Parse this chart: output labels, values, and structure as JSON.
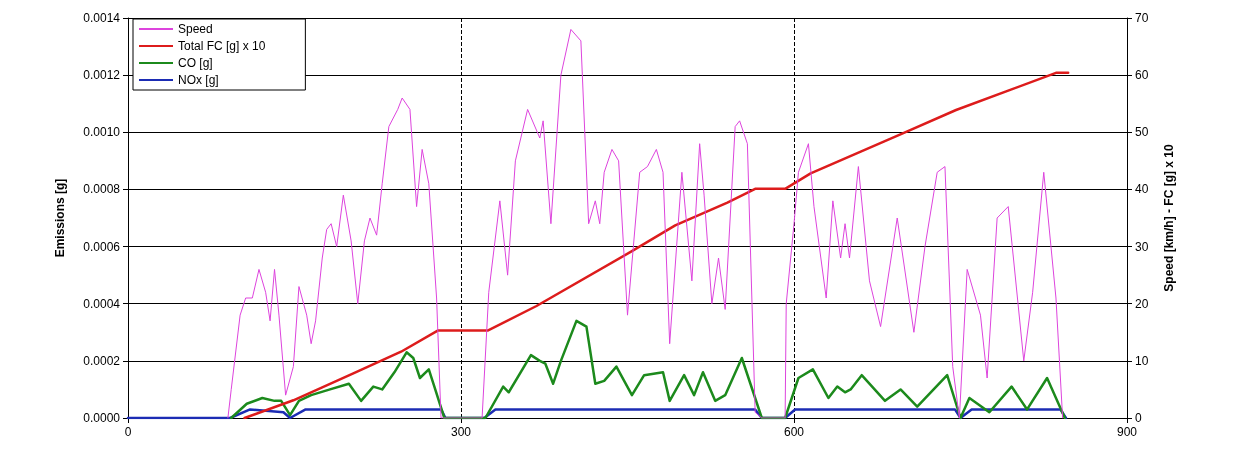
{
  "chart_data": {
    "type": "line",
    "ylabel": "Emissions [g]",
    "y2label": "Speed [km/h] - FC [g] x 10",
    "xlim": [
      0,
      900
    ],
    "xticks": [
      0,
      300,
      600,
      900
    ],
    "ylim": [
      0,
      0.0014
    ],
    "yticks": [
      {
        "value": 0,
        "label": "0.0000"
      },
      {
        "value": 0.0002,
        "label": "0.0002"
      },
      {
        "value": 0.0004,
        "label": "0.0004"
      },
      {
        "value": 0.0006,
        "label": "0.0006"
      },
      {
        "value": 0.0008,
        "label": "0.0008"
      },
      {
        "value": 0.001,
        "label": "0.0010"
      },
      {
        "value": 0.0012,
        "label": "0.0012"
      },
      {
        "value": 0.0014,
        "label": "0.0014"
      }
    ],
    "y2lim": [
      0,
      70
    ],
    "y2ticks": [
      0,
      10,
      20,
      30,
      40,
      50,
      60,
      70
    ],
    "grid": true,
    "legend": "top left",
    "marker": "none",
    "line_style": "solid",
    "series": [
      {
        "name": "Speed",
        "color": "#dd44dd",
        "axis": "y2",
        "x": [
          90,
          93,
          101,
          106,
          112,
          118,
          124,
          128,
          132,
          136,
          142,
          149,
          154,
          161,
          165,
          169,
          175,
          179,
          183,
          188,
          194,
          201,
          207,
          213,
          218,
          224,
          229,
          235,
          243,
          247,
          254,
          260,
          265,
          271,
          278,
          282,
          319,
          325,
          335,
          342,
          349,
          360,
          371,
          374,
          381,
          390,
          399,
          408,
          415,
          421,
          425,
          429,
          436,
          442,
          450,
          461,
          468,
          476,
          482,
          488,
          499,
          508,
          515,
          519,
          526,
          532,
          538,
          547,
          551,
          558,
          565,
          571,
          592,
          593,
          600,
          604,
          613,
          618,
          629,
          635,
          642,
          646,
          650,
          658,
          668,
          678,
          693,
          708,
          718,
          729,
          736,
          743,
          749,
          756,
          768,
          774,
          783,
          793,
          807,
          815,
          825,
          836,
          842
        ],
        "values": [
          0,
          5,
          18,
          21,
          21,
          26,
          22,
          17,
          26,
          18,
          4,
          9,
          23,
          18,
          13,
          17,
          28,
          33,
          34,
          30,
          39,
          31,
          20,
          31,
          35,
          32,
          41,
          51,
          54,
          56,
          54,
          37,
          47,
          41,
          21,
          0,
          0,
          22,
          38,
          25,
          45,
          54,
          49,
          52,
          34,
          60,
          68,
          66,
          34,
          38,
          34,
          43,
          47,
          45,
          18,
          43,
          44,
          47,
          43,
          13,
          43,
          24,
          48,
          39,
          20,
          28,
          19,
          51,
          52,
          48,
          1,
          0,
          0,
          20,
          34,
          43,
          48,
          37,
          21,
          38,
          28,
          34,
          28,
          44,
          24,
          16,
          35,
          15,
          30,
          43,
          44,
          9,
          0,
          26,
          18,
          7,
          35,
          37,
          10,
          22,
          43,
          21,
          0
        ]
      },
      {
        "name": "Total FC [g] x 10",
        "color": "#dd1c1c",
        "axis": "y2",
        "x": [
          105,
          149,
          204,
          246,
          279,
          324,
          368,
          454,
          493,
          540,
          565,
          592,
          615,
          699,
          746,
          796,
          836,
          847
        ],
        "values": [
          0,
          3.1,
          7.9,
          11.6,
          15.3,
          15.3,
          19.6,
          29.2,
          33.7,
          37.7,
          40.1,
          40.1,
          42.8,
          49.9,
          53.9,
          57.5,
          60.4,
          60.4
        ]
      },
      {
        "name": "CO [g]",
        "color": "#1c8a1c",
        "axis": "y",
        "x": [
          93,
          107,
          121,
          132,
          138,
          146,
          154,
          165,
          182,
          199,
          210,
          221,
          229,
          240,
          251,
          257,
          263,
          271,
          276,
          285,
          322,
          338,
          343,
          363,
          371,
          376,
          383,
          390,
          404,
          413,
          421,
          429,
          440,
          454,
          465,
          482,
          488,
          501,
          510,
          518,
          529,
          538,
          553,
          571,
          592,
          604,
          617,
          631,
          639,
          646,
          651,
          661,
          682,
          696,
          711,
          738,
          750,
          758,
          776,
          796,
          810,
          828,
          844
        ],
        "values": [
          0,
          5e-05,
          7e-05,
          6e-05,
          6e-05,
          1e-05,
          6e-05,
          8e-05,
          0.0001,
          0.00012,
          6e-05,
          0.00011,
          0.0001,
          0.00016,
          0.00023,
          0.00021,
          0.00014,
          0.00017,
          0.00011,
          0,
          0,
          0.00011,
          9e-05,
          0.00022,
          0.0002,
          0.00019,
          0.00012,
          0.0002,
          0.00034,
          0.00032,
          0.00012,
          0.00013,
          0.00018,
          8e-05,
          0.00015,
          0.00016,
          6e-05,
          0.00015,
          8e-05,
          0.00016,
          6e-05,
          8e-05,
          0.00021,
          0,
          0,
          0.00014,
          0.00017,
          7e-05,
          0.00011,
          9e-05,
          0.0001,
          0.00015,
          6e-05,
          0.0001,
          4e-05,
          0.00015,
          0,
          7e-05,
          2e-05,
          0.00011,
          3e-05,
          0.00014,
          0
        ]
      },
      {
        "name": "NOx [g]",
        "color": "#1c2cb4",
        "axis": "y",
        "x": [
          0,
          92,
          110,
          140,
          146,
          160,
          282,
          286,
          321,
          331,
          565,
          571,
          592,
          601,
          745,
          750,
          760,
          840,
          845
        ],
        "values": [
          0,
          0,
          3e-05,
          2e-05,
          0,
          3e-05,
          3e-05,
          0,
          0,
          3e-05,
          3e-05,
          0,
          0,
          3e-05,
          3e-05,
          0,
          3e-05,
          3e-05,
          0
        ]
      }
    ]
  }
}
